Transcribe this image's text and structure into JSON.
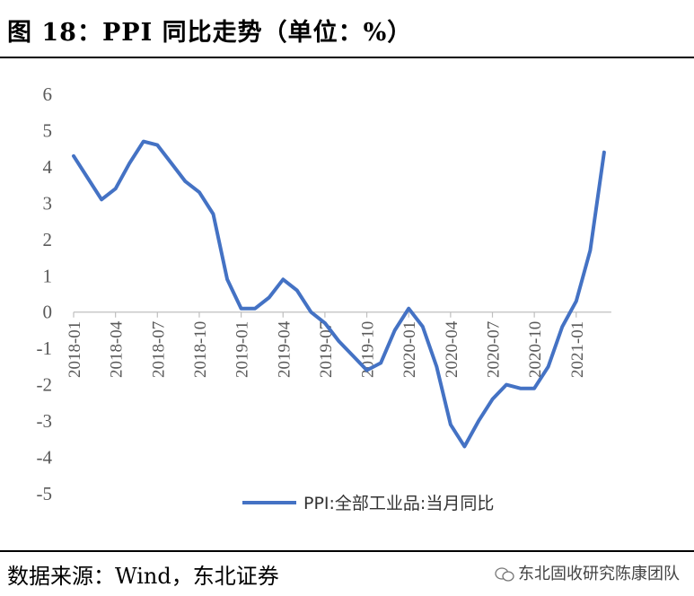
{
  "figure": {
    "title": "图 18：PPI 同比走势（单位：%）",
    "source": "数据来源：Wind，东北证券",
    "watermark": "东北固收研究陈康团队",
    "line_color": "#4472C4"
  },
  "chart_data": {
    "type": "line",
    "title": "PPI 同比走势（单位：%）",
    "ylim": [
      -5,
      6
    ],
    "yticks": [
      6,
      5,
      4,
      3,
      2,
      1,
      0,
      -1,
      -2,
      -3,
      -4,
      -5
    ],
    "xticks": [
      "2018-01",
      "2018-04",
      "2018-07",
      "2018-10",
      "2019-01",
      "2019-04",
      "2019-07",
      "2019-10",
      "2020-01",
      "2020-04",
      "2020-07",
      "2020-10",
      "2021-01"
    ],
    "x": [
      "2018-01",
      "2018-02",
      "2018-03",
      "2018-04",
      "2018-05",
      "2018-06",
      "2018-07",
      "2018-08",
      "2018-09",
      "2018-10",
      "2018-11",
      "2018-12",
      "2019-01",
      "2019-02",
      "2019-03",
      "2019-04",
      "2019-05",
      "2019-06",
      "2019-07",
      "2019-08",
      "2019-09",
      "2019-10",
      "2019-11",
      "2019-12",
      "2020-01",
      "2020-02",
      "2020-03",
      "2020-04",
      "2020-05",
      "2020-06",
      "2020-07",
      "2020-08",
      "2020-09",
      "2020-10",
      "2020-11",
      "2020-12",
      "2021-01",
      "2021-02",
      "2021-03"
    ],
    "series": [
      {
        "name": "PPI:全部工业品:当月同比",
        "values": [
          4.3,
          3.7,
          3.1,
          3.4,
          4.1,
          4.7,
          4.6,
          4.1,
          3.6,
          3.3,
          2.7,
          0.9,
          0.1,
          0.1,
          0.4,
          0.9,
          0.6,
          0.0,
          -0.3,
          -0.8,
          -1.2,
          -1.6,
          -1.4,
          -0.5,
          0.1,
          -0.4,
          -1.5,
          -3.1,
          -3.7,
          -3.0,
          -2.4,
          -2.0,
          -2.1,
          -2.1,
          -1.5,
          -0.4,
          0.3,
          1.7,
          4.4
        ]
      }
    ],
    "legend": "bottom-center",
    "grid": false
  }
}
